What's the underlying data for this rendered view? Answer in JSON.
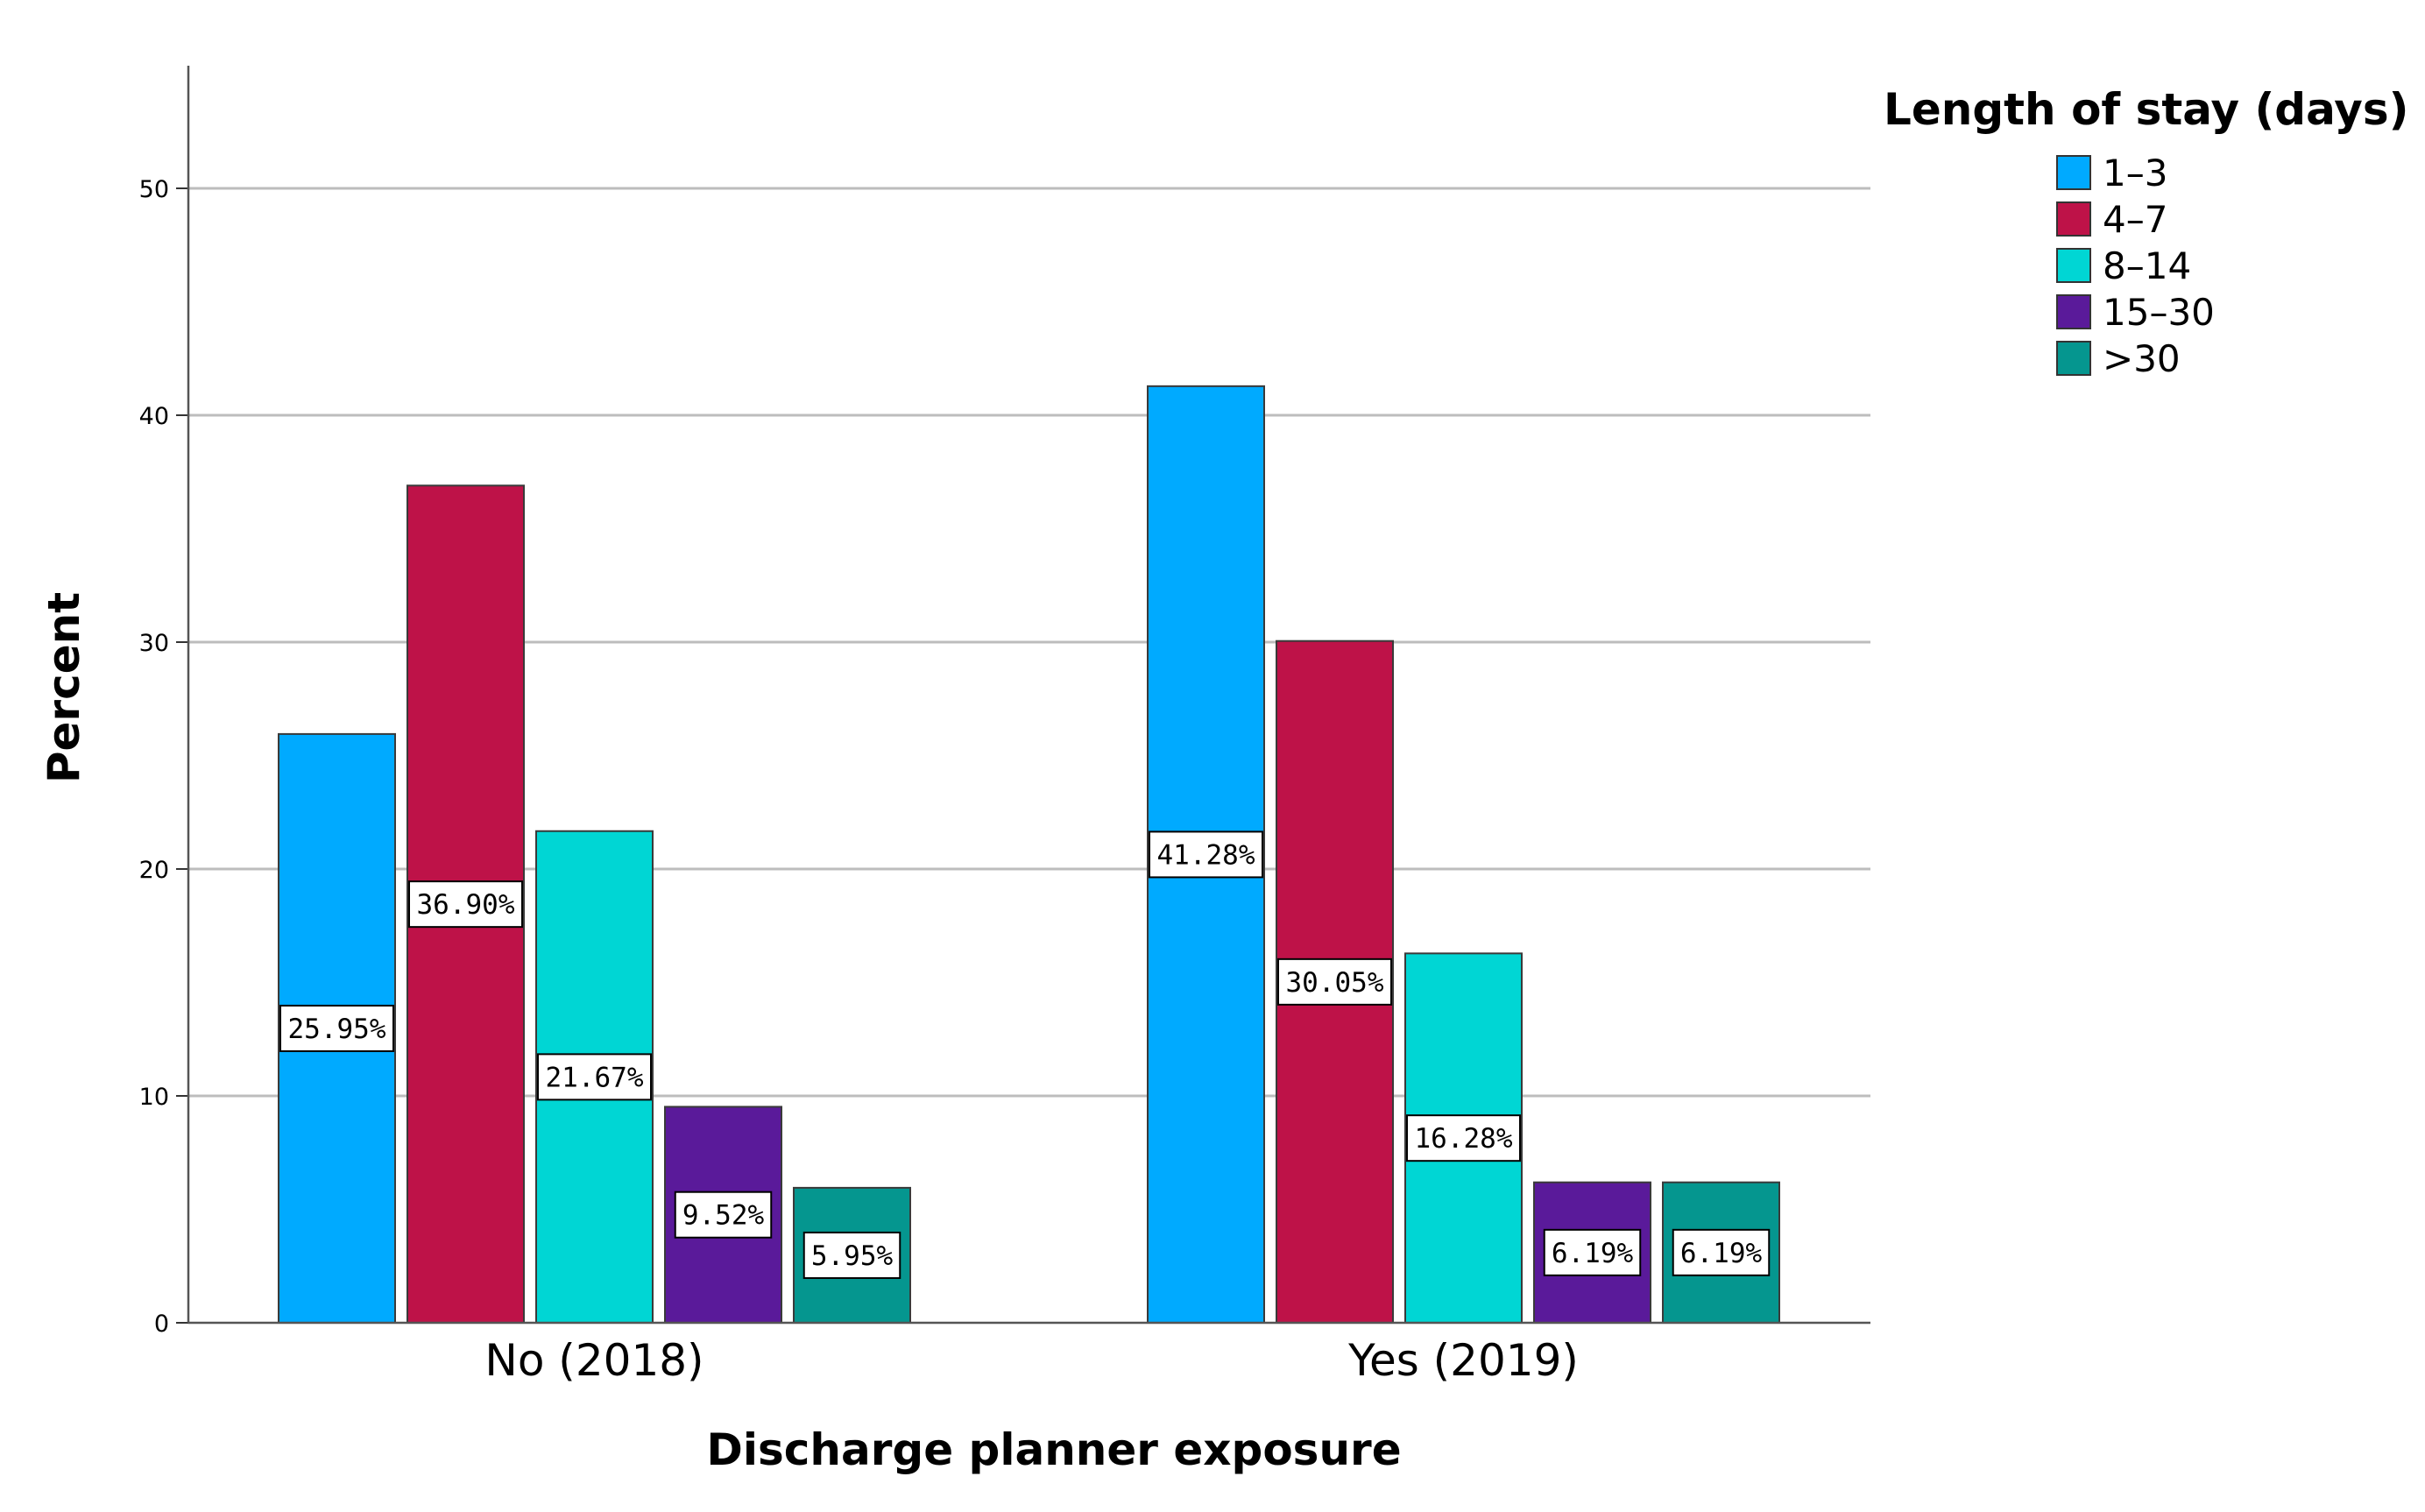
{
  "chart_data": {
    "type": "bar",
    "title": "",
    "xlabel": "Discharge planner exposure",
    "ylabel": "Percent",
    "ylim": [
      0,
      55
    ],
    "yticks": [
      0,
      10,
      20,
      30,
      40,
      50
    ],
    "grid": true,
    "categories": [
      "No (2018)",
      "Yes (2019)"
    ],
    "legend_title": "Length of stay (days)",
    "legend_position": "top-right",
    "series": [
      {
        "name": "1–3",
        "color": "#00aaff",
        "values": [
          25.95,
          41.28
        ],
        "labels": [
          "25.95%",
          "41.28%"
        ]
      },
      {
        "name": "4–7",
        "color": "#be1248",
        "values": [
          36.9,
          30.05
        ],
        "labels": [
          "36.90%",
          "30.05%"
        ]
      },
      {
        "name": "8–14",
        "color": "#00d6d4",
        "values": [
          21.67,
          16.28
        ],
        "labels": [
          "21.67%",
          "16.28%"
        ]
      },
      {
        "name": "15–30",
        "color": "#5a1a9a",
        "values": [
          9.52,
          6.19
        ],
        "labels": [
          "9.52%",
          "6.19%"
        ]
      },
      {
        "name": ">30",
        "color": "#05968f",
        "values": [
          5.95,
          6.19
        ],
        "labels": [
          "5.95%",
          "6.19%"
        ]
      }
    ]
  }
}
